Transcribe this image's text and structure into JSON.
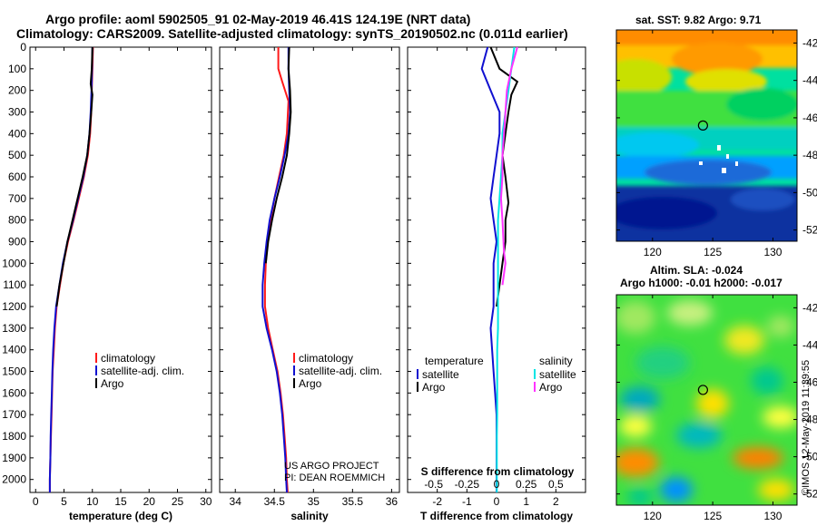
{
  "title": {
    "line1": "Argo profile: aoml 5902505_91 02-May-2019 46.41S 124.19E (NRT data)",
    "line2": "Climatology: CARS2009. Satellite-adjusted climatology: synTS_20190502.nc (0.011d earlier)"
  },
  "colors": {
    "climatology": "#ff1a1a",
    "satellite": "#1010d0",
    "argo": "#000000",
    "sat_salinity": "#00e5e5",
    "argo_salinity": "#ff33ff"
  },
  "chart_data": [
    {
      "type": "line",
      "name": "temperature",
      "xlabel": "temperature (deg C)",
      "ylabel": "",
      "xlim": [
        -1,
        31
      ],
      "ylim": [
        2060,
        0
      ],
      "xticks": [
        0,
        5,
        10,
        15,
        20,
        25,
        30
      ],
      "yticks": [
        0,
        100,
        200,
        300,
        400,
        500,
        600,
        700,
        800,
        900,
        1000,
        1100,
        1200,
        1300,
        1400,
        1500,
        1600,
        1700,
        1800,
        1900,
        2000
      ],
      "legend": [
        "climatology",
        "satellite-adj. clim.",
        "Argo"
      ],
      "series": [
        {
          "name": "climatology",
          "color_key": "climatology",
          "x": [
            10.1,
            10.0,
            9.9,
            9.8,
            9.6,
            9.2,
            8.5,
            7.6,
            6.7,
            5.7,
            4.9,
            4.3,
            3.7,
            3.4,
            3.2,
            3.0,
            2.9,
            2.8,
            2.7,
            2.6,
            2.5,
            2.5
          ],
          "y": [
            0,
            100,
            200,
            300,
            400,
            500,
            600,
            700,
            800,
            900,
            1000,
            1100,
            1200,
            1300,
            1400,
            1500,
            1600,
            1700,
            1800,
            1900,
            2000,
            2060
          ]
        },
        {
          "name": "satellite-adj. clim.",
          "color_key": "satellite",
          "x": [
            10.0,
            9.95,
            9.85,
            9.7,
            9.5,
            9.1,
            8.4,
            7.5,
            6.6,
            5.6,
            4.8,
            4.2,
            3.6,
            3.3,
            3.1,
            2.95,
            2.85,
            2.75,
            2.65,
            2.6,
            2.5,
            2.5
          ],
          "y": [
            0,
            100,
            200,
            300,
            400,
            500,
            600,
            700,
            800,
            900,
            1000,
            1100,
            1200,
            1300,
            1400,
            1500,
            1600,
            1700,
            1800,
            1900,
            2000,
            2060
          ]
        },
        {
          "name": "Argo",
          "color_key": "argo",
          "x": [
            10.0,
            9.9,
            9.7,
            10.0,
            9.8,
            9.5,
            9.1,
            8.3,
            7.4,
            6.5,
            5.6,
            4.9,
            4.2,
            3.7
          ],
          "y": [
            0,
            100,
            170,
            220,
            300,
            400,
            500,
            600,
            700,
            800,
            900,
            1000,
            1100,
            1200
          ]
        }
      ]
    },
    {
      "type": "line",
      "name": "salinity",
      "xlabel": "salinity",
      "ylabel": "",
      "xlim": [
        33.8,
        36.1
      ],
      "ylim": [
        2060,
        0
      ],
      "xticks": [
        34,
        34.5,
        35,
        35.5,
        36
      ],
      "xtick_labels": [
        "34",
        "34.5",
        "35",
        "35.5",
        "36"
      ],
      "legend": [
        "climatology",
        "satellite-adj. clim.",
        "Argo"
      ],
      "series": [
        {
          "name": "climatology",
          "color_key": "climatology",
          "x": [
            34.55,
            34.55,
            34.6,
            34.68,
            34.66,
            34.62,
            34.56,
            34.5,
            34.45,
            34.41,
            34.39,
            34.38,
            34.38,
            34.42,
            34.48,
            34.54,
            34.58,
            34.61,
            34.63,
            34.65,
            34.66,
            34.67
          ],
          "y": [
            0,
            100,
            160,
            250,
            400,
            500,
            600,
            700,
            800,
            900,
            1000,
            1100,
            1200,
            1300,
            1400,
            1500,
            1600,
            1700,
            1800,
            1900,
            2000,
            2060
          ]
        },
        {
          "name": "satellite-adj. clim.",
          "color_key": "satellite",
          "x": [
            34.68,
            34.68,
            34.69,
            34.7,
            34.68,
            34.63,
            34.57,
            34.5,
            34.44,
            34.4,
            34.37,
            34.35,
            34.35,
            34.4,
            34.47,
            34.53,
            34.57,
            34.6,
            34.62,
            34.64,
            34.65,
            34.66
          ],
          "y": [
            0,
            100,
            200,
            300,
            400,
            500,
            600,
            700,
            800,
            900,
            1000,
            1100,
            1200,
            1300,
            1400,
            1500,
            1600,
            1700,
            1800,
            1900,
            2000,
            2060
          ]
        },
        {
          "name": "Argo",
          "color_key": "argo",
          "x": [
            34.69,
            34.68,
            34.7,
            34.71,
            34.69,
            34.66,
            34.6,
            34.53,
            34.47,
            34.42,
            34.39
          ],
          "y": [
            0,
            100,
            200,
            300,
            400,
            500,
            600,
            700,
            800,
            900,
            1000
          ]
        }
      ],
      "annotations": [
        "US ARGO PROJECT",
        "PI: DEAN ROEMMICH"
      ]
    },
    {
      "type": "line",
      "name": "difference",
      "xlabel": "T difference from climatology",
      "ylabel": "",
      "secondary_xlabel": "S difference from climatology",
      "xlim": [
        -3,
        3
      ],
      "ylim": [
        2060,
        0
      ],
      "xticks": [
        -2,
        -1,
        0,
        1,
        2
      ],
      "xtick_labels": [
        "-2",
        "-1",
        "0",
        "1",
        "2"
      ],
      "secondary_xtick_labels": [
        "-0.5",
        "-0.25",
        "0",
        "0.25",
        "0.5"
      ],
      "legend_left_title": "temperature",
      "legend_right_title": "salinity",
      "legend": [
        "satellite",
        "Argo",
        "satellite",
        "Argo"
      ],
      "series": [
        {
          "name": "temperature satellite",
          "color_key": "satellite",
          "x": [
            -0.3,
            -0.5,
            -0.2,
            0.1,
            0.1,
            0.0,
            -0.1,
            -0.2,
            -0.1,
            0.0,
            -0.1,
            -0.1,
            -0.1,
            -0.2,
            -0.15,
            -0.1,
            -0.05,
            0.0,
            0.0,
            0.0,
            0.0,
            0.0
          ],
          "y": [
            0,
            100,
            200,
            300,
            400,
            500,
            600,
            700,
            800,
            900,
            1000,
            1100,
            1200,
            1300,
            1400,
            1500,
            1600,
            1700,
            1800,
            1900,
            2000,
            2060
          ]
        },
        {
          "name": "temperature Argo",
          "color_key": "argo",
          "x": [
            -0.2,
            0.1,
            0.7,
            0.5,
            0.4,
            0.3,
            0.2,
            0.3,
            0.4,
            0.3,
            0.3,
            0.2,
            0.1,
            0.0
          ],
          "y": [
            0,
            100,
            160,
            220,
            300,
            400,
            500,
            600,
            720,
            800,
            900,
            1000,
            1100,
            1200
          ]
        },
        {
          "name": "salinity satellite",
          "color_key": "sat_salinity",
          "x": [
            0.6,
            0.5,
            0.4,
            0.3,
            0.2,
            0.2,
            0.15,
            0.1,
            0.05,
            0.05,
            0.05,
            0.05,
            0.05,
            0.05,
            0.02,
            0.02,
            0.02,
            0.02,
            0.01,
            0.01,
            0.01,
            0.01
          ],
          "y": [
            0,
            100,
            200,
            300,
            400,
            500,
            600,
            700,
            800,
            900,
            1000,
            1100,
            1200,
            1300,
            1400,
            1500,
            1600,
            1700,
            1800,
            1900,
            2000,
            2060
          ]
        },
        {
          "name": "salinity Argo",
          "color_key": "argo_salinity",
          "x": [
            0.7,
            0.5,
            0.35,
            0.3,
            0.25,
            0.2,
            0.2,
            0.15,
            0.2,
            0.25,
            0.3,
            0.2
          ],
          "y": [
            0,
            100,
            200,
            300,
            400,
            500,
            600,
            700,
            800,
            950,
            1000,
            1100
          ]
        }
      ]
    },
    {
      "type": "heatmap",
      "name": "sst map",
      "title": "sat. SST: 9.82 Argo: 9.71",
      "xticks": [
        "120",
        "125",
        "130"
      ],
      "yticks": [
        "-42",
        "-44",
        "-46",
        "-48",
        "-50",
        "-52"
      ],
      "marker": {
        "lon": 124.19,
        "lat": -46.41
      }
    },
    {
      "type": "heatmap",
      "name": "sla map",
      "title": "Altim. SLA: -0.024",
      "subtitle": "Argo h1000: -0.01 h2000: -0.017",
      "xticks": [
        "120",
        "125",
        "130"
      ],
      "yticks": [
        "-42",
        "-44",
        "-46",
        "-48",
        "-50",
        "-52"
      ],
      "marker": {
        "lon": 124.19,
        "lat": -46.41
      }
    }
  ],
  "credit": "©IMOS 12-May-2019 11:39:55"
}
